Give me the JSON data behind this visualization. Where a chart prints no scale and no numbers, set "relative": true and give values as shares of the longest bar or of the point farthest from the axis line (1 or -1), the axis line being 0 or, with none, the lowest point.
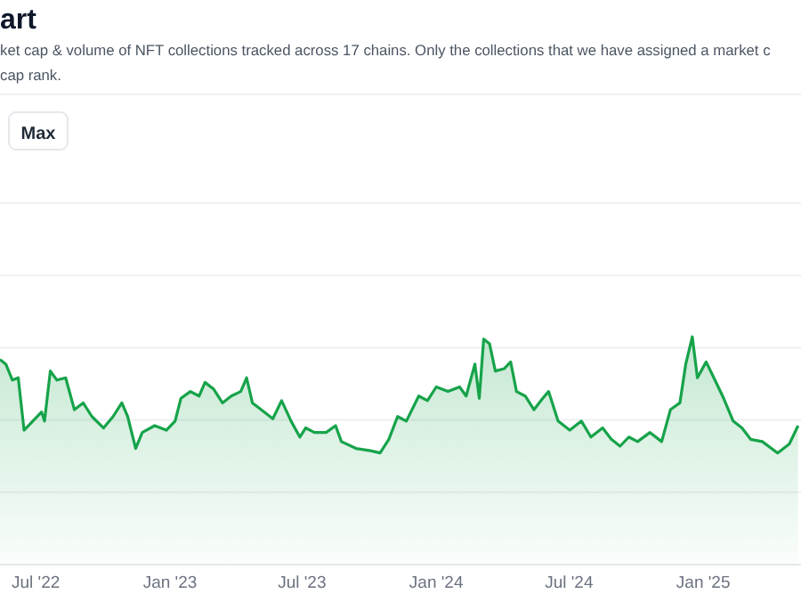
{
  "chart_data": {
    "type": "area",
    "title": "art",
    "subtitle": "ket cap & volume of NFT collections tracked across 17 chains. Only the collections that we have assigned a market c\ncap rank.",
    "annotations": [
      "Max"
    ],
    "relative": true,
    "grid": "y",
    "xlim": [
      "2022-05-13",
      "2025-05-15"
    ],
    "xticks": [
      {
        "value": "2022-07-01",
        "label": "Jul '22"
      },
      {
        "value": "2023-01-01",
        "label": "Jan '23"
      },
      {
        "value": "2023-07-01",
        "label": "Jul '23"
      },
      {
        "value": "2024-01-01",
        "label": "Jan '24"
      },
      {
        "value": "2024-07-01",
        "label": "Jul '24"
      },
      {
        "value": "2025-01-01",
        "label": "Jan '25"
      }
    ],
    "x": [
      "2022-05-13",
      "2022-05-21",
      "2022-05-30",
      "2022-06-07",
      "2022-06-15",
      "2022-06-27",
      "2022-07-09",
      "2022-07-13",
      "2022-07-21",
      "2022-07-30",
      "2022-08-11",
      "2022-08-23",
      "2022-09-04",
      "2022-09-16",
      "2022-10-02",
      "2022-10-15",
      "2022-10-27",
      "2022-11-04",
      "2022-11-15",
      "2022-11-24",
      "2022-12-11",
      "2022-12-27",
      "2023-01-08",
      "2023-01-16",
      "2023-01-29",
      "2023-02-10",
      "2023-02-18",
      "2023-03-02",
      "2023-03-14",
      "2023-03-26",
      "2023-04-08",
      "2023-04-16",
      "2023-04-24",
      "2023-05-06",
      "2023-05-22",
      "2023-06-03",
      "2023-06-16",
      "2023-06-28",
      "2023-07-06",
      "2023-07-18",
      "2023-08-03",
      "2023-08-16",
      "2023-08-24",
      "2023-09-13",
      "2023-10-03",
      "2023-10-16",
      "2023-10-28",
      "2023-11-09",
      "2023-11-21",
      "2023-12-08",
      "2023-12-20",
      "2024-01-01",
      "2024-01-17",
      "2024-02-02",
      "2024-02-11",
      "2024-02-23",
      "2024-02-29",
      "2024-03-06",
      "2024-03-14",
      "2024-03-22",
      "2024-04-03",
      "2024-04-12",
      "2024-04-20",
      "2024-05-02",
      "2024-05-14",
      "2024-05-26",
      "2024-06-03",
      "2024-06-16",
      "2024-07-02",
      "2024-07-18",
      "2024-07-31",
      "2024-08-16",
      "2024-08-28",
      "2024-09-09",
      "2024-09-21",
      "2024-10-03",
      "2024-10-20",
      "2024-11-05",
      "2024-11-17",
      "2024-11-30",
      "2024-12-08",
      "2024-12-17",
      "2024-12-24",
      "2025-01-05",
      "2025-01-17",
      "2025-01-29",
      "2025-02-11",
      "2025-02-23",
      "2025-03-07",
      "2025-03-23",
      "2025-04-13",
      "2025-04-29",
      "2025-05-11"
    ],
    "series": [
      {
        "color": "#16a34a",
        "values": [
          0.9,
          0.88,
          0.81,
          0.82,
          0.59,
          0.63,
          0.67,
          0.63,
          0.85,
          0.81,
          0.82,
          0.68,
          0.71,
          0.65,
          0.6,
          0.65,
          0.71,
          0.65,
          0.51,
          0.58,
          0.61,
          0.59,
          0.63,
          0.73,
          0.76,
          0.74,
          0.8,
          0.77,
          0.71,
          0.74,
          0.76,
          0.82,
          0.71,
          0.68,
          0.64,
          0.72,
          0.63,
          0.56,
          0.6,
          0.58,
          0.58,
          0.61,
          0.54,
          0.51,
          0.5,
          0.49,
          0.55,
          0.65,
          0.63,
          0.74,
          0.72,
          0.78,
          0.76,
          0.78,
          0.74,
          0.88,
          0.73,
          0.99,
          0.97,
          0.85,
          0.86,
          0.89,
          0.76,
          0.74,
          0.68,
          0.73,
          0.76,
          0.63,
          0.59,
          0.63,
          0.56,
          0.6,
          0.55,
          0.52,
          0.56,
          0.54,
          0.58,
          0.54,
          0.68,
          0.71,
          0.88,
          1,
          0.82,
          0.89,
          0.81,
          0.73,
          0.63,
          0.6,
          0.55,
          0.54,
          0.49,
          0.53,
          0.61
        ]
      }
    ]
  }
}
